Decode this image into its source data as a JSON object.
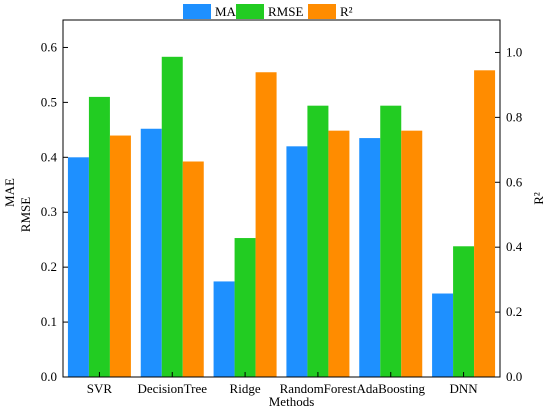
{
  "chart_data": {
    "type": "bar",
    "categories": [
      "SVR",
      "DecisionTree",
      "Ridge",
      "RandomForest",
      "AdaBoosting",
      "DNN"
    ],
    "series": [
      {
        "name": "MAE",
        "axis": "left",
        "color": "#1e90ff",
        "values": [
          0.4,
          0.452,
          0.174,
          0.42,
          0.435,
          0.152
        ]
      },
      {
        "name": "RMSE",
        "axis": "left",
        "color": "#22cc22",
        "values": [
          0.51,
          0.583,
          0.253,
          0.494,
          0.494,
          0.238
        ]
      },
      {
        "name": "R²",
        "axis": "right",
        "color": "#ff8c00",
        "values": [
          0.744,
          0.664,
          0.939,
          0.759,
          0.759,
          0.945
        ]
      }
    ],
    "xlabel": "Methods",
    "ylabel_left": [
      "MAE",
      "RMSE"
    ],
    "ylabel_right": "R²",
    "ylim_left": [
      0,
      0.65
    ],
    "ylim_right": [
      0,
      1.1
    ],
    "yticks_left": [
      "0.0",
      "0.1",
      "0.2",
      "0.3",
      "0.4",
      "0.5",
      "0.6"
    ],
    "yticks_right": [
      "0.0",
      "0.2",
      "0.4",
      "0.6",
      "0.8",
      "1.0"
    ],
    "legend_position": "top-center",
    "grid": false
  }
}
